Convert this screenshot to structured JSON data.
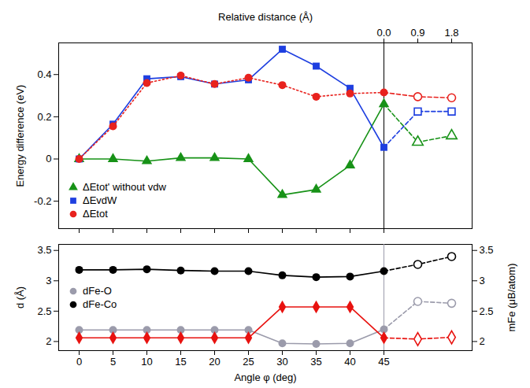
{
  "chart_data": [
    {
      "type": "line",
      "top_axis_label": "Relative distance (Å)",
      "top_categories": [
        null,
        null,
        null,
        null,
        null,
        null,
        null,
        null,
        null,
        "0.0",
        "0.9",
        "1.8"
      ],
      "categories": [
        "0",
        "5",
        "10",
        "15",
        "20",
        "25",
        "30",
        "35",
        "40",
        "45",
        null,
        null
      ],
      "y_label": "Energy difference (eV)",
      "ylim": [
        -0.33,
        0.55
      ],
      "yticks": [
        -0.2,
        0,
        0.2,
        0.4
      ],
      "legend": "bottom-left",
      "series": [
        {
          "name": "ΔEtot' without vdw",
          "color": "#179217",
          "marker": "triangle",
          "line_style": "solid",
          "values": [
            0,
            0,
            -0.01,
            0.005,
            0.005,
            0,
            -0.17,
            -0.145,
            -0.03,
            0.26,
            0.08,
            0.11
          ]
        },
        {
          "name": "ΔEvdW",
          "color": "#1e3fe0",
          "marker": "square",
          "line_style": "solid",
          "values": [
            0,
            0.165,
            0.38,
            0.39,
            0.355,
            0.375,
            0.52,
            0.44,
            0.335,
            0.055,
            0.225,
            0.225
          ]
        },
        {
          "name": "ΔEtot",
          "color": "#e8221e",
          "marker": "circle",
          "line_style": "dotted",
          "values": [
            0,
            0.155,
            0.36,
            0.395,
            0.355,
            0.385,
            0.35,
            0.295,
            0.31,
            0.315,
            0.295,
            0.29
          ]
        }
      ]
    },
    {
      "type": "line",
      "x_label": "Angle φ (deg)",
      "categories": [
        "0",
        "5",
        "10",
        "15",
        "20",
        "25",
        "30",
        "35",
        "40",
        "45",
        null,
        null
      ],
      "y_label": "d (Å)",
      "y2_label": "mFe (μB/atom)",
      "ylim": [
        1.85,
        3.6
      ],
      "yticks": [
        2,
        2.5,
        3,
        3.5
      ],
      "y2lim": [
        1.85,
        3.6
      ],
      "y2ticks": [
        2,
        2.5,
        3,
        3.5
      ],
      "legend": "left",
      "series": [
        {
          "name": "dFe-O",
          "color": "#9b9bab",
          "marker": "circle",
          "line_style": "solid",
          "values": [
            2.19,
            2.19,
            2.19,
            2.19,
            2.19,
            2.19,
            1.97,
            1.96,
            1.97,
            2.2,
            2.66,
            2.63
          ]
        },
        {
          "name": "dFe-Co",
          "color": "#000000",
          "marker": "circle",
          "line_style": "solid",
          "values": [
            3.18,
            3.18,
            3.19,
            3.17,
            3.16,
            3.16,
            3.09,
            3.06,
            3.07,
            3.16,
            3.27,
            3.4
          ]
        },
        {
          "axis": "y2",
          "color": "#e8120f",
          "marker": "diamond",
          "line_style": "solid",
          "values": [
            2.06,
            2.06,
            2.06,
            2.06,
            2.06,
            2.06,
            2.57,
            2.57,
            2.57,
            2.06,
            2.04,
            2.07
          ]
        }
      ]
    }
  ]
}
